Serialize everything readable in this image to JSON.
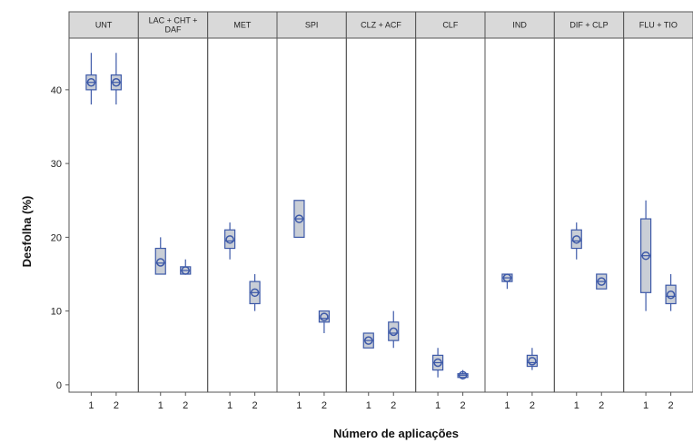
{
  "chart_data": {
    "type": "box",
    "title": "",
    "xlabel": "Número de aplicações",
    "ylabel": "Desfolha (%)",
    "ylim": [
      -1,
      47
    ],
    "yticks": [
      0,
      10,
      20,
      30,
      40
    ],
    "x_categories": [
      "1",
      "2"
    ],
    "grid": false,
    "box_fill": "#c9ced6",
    "box_stroke": "#3d59a8",
    "strip_fill": "#d9d9d9",
    "panels": [
      {
        "label_lines": [
          "UNT"
        ],
        "boxes": [
          {
            "x": "1",
            "min": 38,
            "q1": 40,
            "median": 41,
            "q3": 42,
            "max": 45,
            "mean": 41
          },
          {
            "x": "2",
            "min": 38,
            "q1": 40,
            "median": 41,
            "q3": 42,
            "max": 45,
            "mean": 41
          }
        ]
      },
      {
        "label_lines": [
          "LAC + CHT +",
          "DAF"
        ],
        "boxes": [
          {
            "x": "1",
            "min": 15,
            "q1": 15,
            "median": 16.5,
            "q3": 18.5,
            "max": 20,
            "mean": 16.6
          },
          {
            "x": "2",
            "min": 15,
            "q1": 15,
            "median": 15.5,
            "q3": 16,
            "max": 17,
            "mean": 15.5
          }
        ]
      },
      {
        "label_lines": [
          "MET"
        ],
        "boxes": [
          {
            "x": "1",
            "min": 17,
            "q1": 18.5,
            "median": 19.5,
            "q3": 21,
            "max": 22,
            "mean": 19.7
          },
          {
            "x": "2",
            "min": 10,
            "q1": 11,
            "median": 12.5,
            "q3": 14,
            "max": 15,
            "mean": 12.5
          }
        ]
      },
      {
        "label_lines": [
          "SPI"
        ],
        "boxes": [
          {
            "x": "1",
            "min": 20,
            "q1": 20,
            "median": 22.5,
            "q3": 25,
            "max": 25,
            "mean": 22.5
          },
          {
            "x": "2",
            "min": 7,
            "q1": 8.5,
            "median": 9,
            "q3": 10,
            "max": 10,
            "mean": 9.2
          }
        ]
      },
      {
        "label_lines": [
          "CLZ + ACF"
        ],
        "boxes": [
          {
            "x": "1",
            "min": 5,
            "q1": 5,
            "median": 6,
            "q3": 7,
            "max": 7,
            "mean": 6
          },
          {
            "x": "2",
            "min": 5,
            "q1": 6,
            "median": 7,
            "q3": 8.5,
            "max": 10,
            "mean": 7.2
          }
        ]
      },
      {
        "label_lines": [
          "CLF"
        ],
        "boxes": [
          {
            "x": "1",
            "min": 1,
            "q1": 2,
            "median": 3,
            "q3": 4,
            "max": 5,
            "mean": 3
          },
          {
            "x": "2",
            "min": 1,
            "q1": 1,
            "median": 1.3,
            "q3": 1.5,
            "max": 2,
            "mean": 1.3
          }
        ]
      },
      {
        "label_lines": [
          "IND"
        ],
        "boxes": [
          {
            "x": "1",
            "min": 13,
            "q1": 14,
            "median": 14.5,
            "q3": 15,
            "max": 15,
            "mean": 14.5
          },
          {
            "x": "2",
            "min": 2,
            "q1": 2.5,
            "median": 3,
            "q3": 4,
            "max": 5,
            "mean": 3.2
          }
        ]
      },
      {
        "label_lines": [
          "DIF + CLP"
        ],
        "boxes": [
          {
            "x": "1",
            "min": 17,
            "q1": 18.5,
            "median": 19.5,
            "q3": 21,
            "max": 22,
            "mean": 19.7
          },
          {
            "x": "2",
            "min": 13,
            "q1": 13,
            "median": 14,
            "q3": 15,
            "max": 15,
            "mean": 14
          }
        ]
      },
      {
        "label_lines": [
          "FLU + TIO"
        ],
        "boxes": [
          {
            "x": "1",
            "min": 10,
            "q1": 12.5,
            "median": 17.5,
            "q3": 22.5,
            "max": 25,
            "mean": 17.5
          },
          {
            "x": "2",
            "min": 10,
            "q1": 11,
            "median": 12,
            "q3": 13.5,
            "max": 15,
            "mean": 12.2
          }
        ]
      }
    ]
  }
}
